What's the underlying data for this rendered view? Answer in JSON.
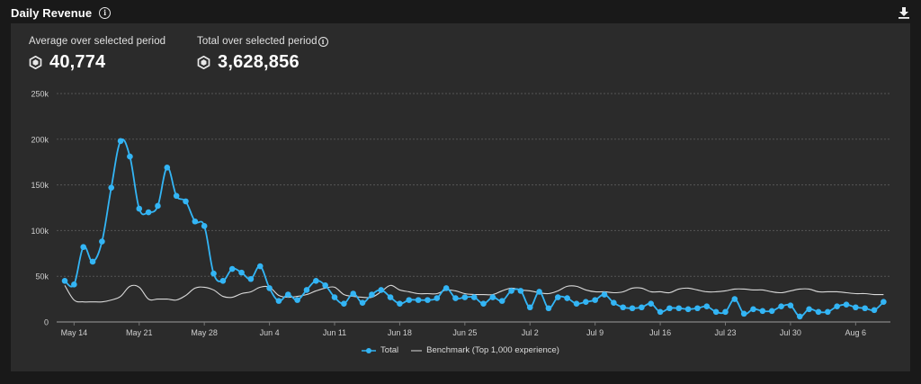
{
  "header": {
    "title": "Daily Revenue",
    "info_icon": "info-icon",
    "download_icon": "download-icon"
  },
  "stats": {
    "average": {
      "label": "Average over selected period",
      "value": "40,774",
      "icon": "robux-icon"
    },
    "total": {
      "label": "Total over selected period",
      "value": "3,628,856",
      "icon": "robux-icon",
      "info_icon": "info-icon"
    }
  },
  "colors": {
    "background": "#191919",
    "panel": "#2b2b2b",
    "total_series": "#33b5f5",
    "benchmark_series": "#d9d9d9",
    "grid": "#555555",
    "axis_text": "#cfcfcf"
  },
  "legend": {
    "total": "Total",
    "benchmark": "Benchmark (Top 1,000 experience)"
  },
  "chart_data": {
    "type": "line",
    "title": "Daily Revenue",
    "xlabel": "",
    "ylabel": "",
    "ylim": [
      0,
      250000
    ],
    "yticks": [
      0,
      50000,
      100000,
      150000,
      200000,
      250000
    ],
    "ytick_labels": [
      "0",
      "50k",
      "100k",
      "150k",
      "200k",
      "250k"
    ],
    "xtick_labels": [
      "May 14",
      "May 21",
      "May 28",
      "Jun 4",
      "Jun 11",
      "Jun 18",
      "Jun 25",
      "Jul 2",
      "Jul 9",
      "Jul 16",
      "Jul 23",
      "Jul 30",
      "Aug 6"
    ],
    "xtick_day_index": [
      1,
      8,
      15,
      22,
      29,
      36,
      43,
      50,
      57,
      64,
      71,
      78,
      85
    ],
    "x_start": "May 13",
    "x_end": "Aug 9",
    "grid": true,
    "legend_position": "bottom",
    "series": [
      {
        "name": "Total",
        "markers": true,
        "values": [
          45000,
          41000,
          82000,
          66000,
          88000,
          147000,
          198000,
          181000,
          124000,
          120000,
          127000,
          169000,
          138000,
          132000,
          110000,
          105000,
          53000,
          45000,
          58000,
          54000,
          47000,
          61000,
          37000,
          23000,
          30000,
          24000,
          35000,
          45000,
          40000,
          27000,
          20000,
          31000,
          21000,
          30000,
          35000,
          27000,
          20000,
          24000,
          24000,
          24000,
          26000,
          37000,
          26000,
          27000,
          27000,
          20000,
          27000,
          23000,
          34000,
          34000,
          16000,
          33000,
          15000,
          27000,
          26000,
          20000,
          22000,
          24000,
          30000,
          21000,
          16000,
          15000,
          16000,
          20000,
          11000,
          15000,
          15000,
          14000,
          15000,
          17000,
          11000,
          11000,
          25000,
          9000,
          14000,
          12000,
          12000,
          17000,
          18000,
          6000,
          14000,
          11000,
          11000,
          17000,
          19000,
          16000,
          15000,
          13000,
          22000
        ]
      },
      {
        "name": "Benchmark (Top 1,000 experience)",
        "markers": false,
        "values": [
          40000,
          24000,
          22000,
          22000,
          22000,
          24000,
          28000,
          39000,
          38000,
          25000,
          25000,
          25000,
          24000,
          29000,
          37000,
          38000,
          35000,
          28000,
          27000,
          31000,
          33000,
          38000,
          38000,
          29000,
          27000,
          28000,
          30000,
          34000,
          37000,
          38000,
          30000,
          28000,
          27000,
          27000,
          33000,
          40000,
          35000,
          33000,
          31000,
          31000,
          31000,
          35000,
          34000,
          31000,
          30000,
          30000,
          30000,
          34000,
          37000,
          35000,
          34000,
          32000,
          31000,
          34000,
          39000,
          39000,
          35000,
          33000,
          33000,
          32000,
          33000,
          37000,
          37000,
          33000,
          33000,
          32000,
          36000,
          37000,
          35000,
          33000,
          33000,
          34000,
          36000,
          36000,
          35000,
          35000,
          33000,
          32000,
          34000,
          36000,
          36000,
          33000,
          33000,
          33000,
          32000,
          31000,
          31000,
          30000,
          30000
        ]
      }
    ]
  }
}
